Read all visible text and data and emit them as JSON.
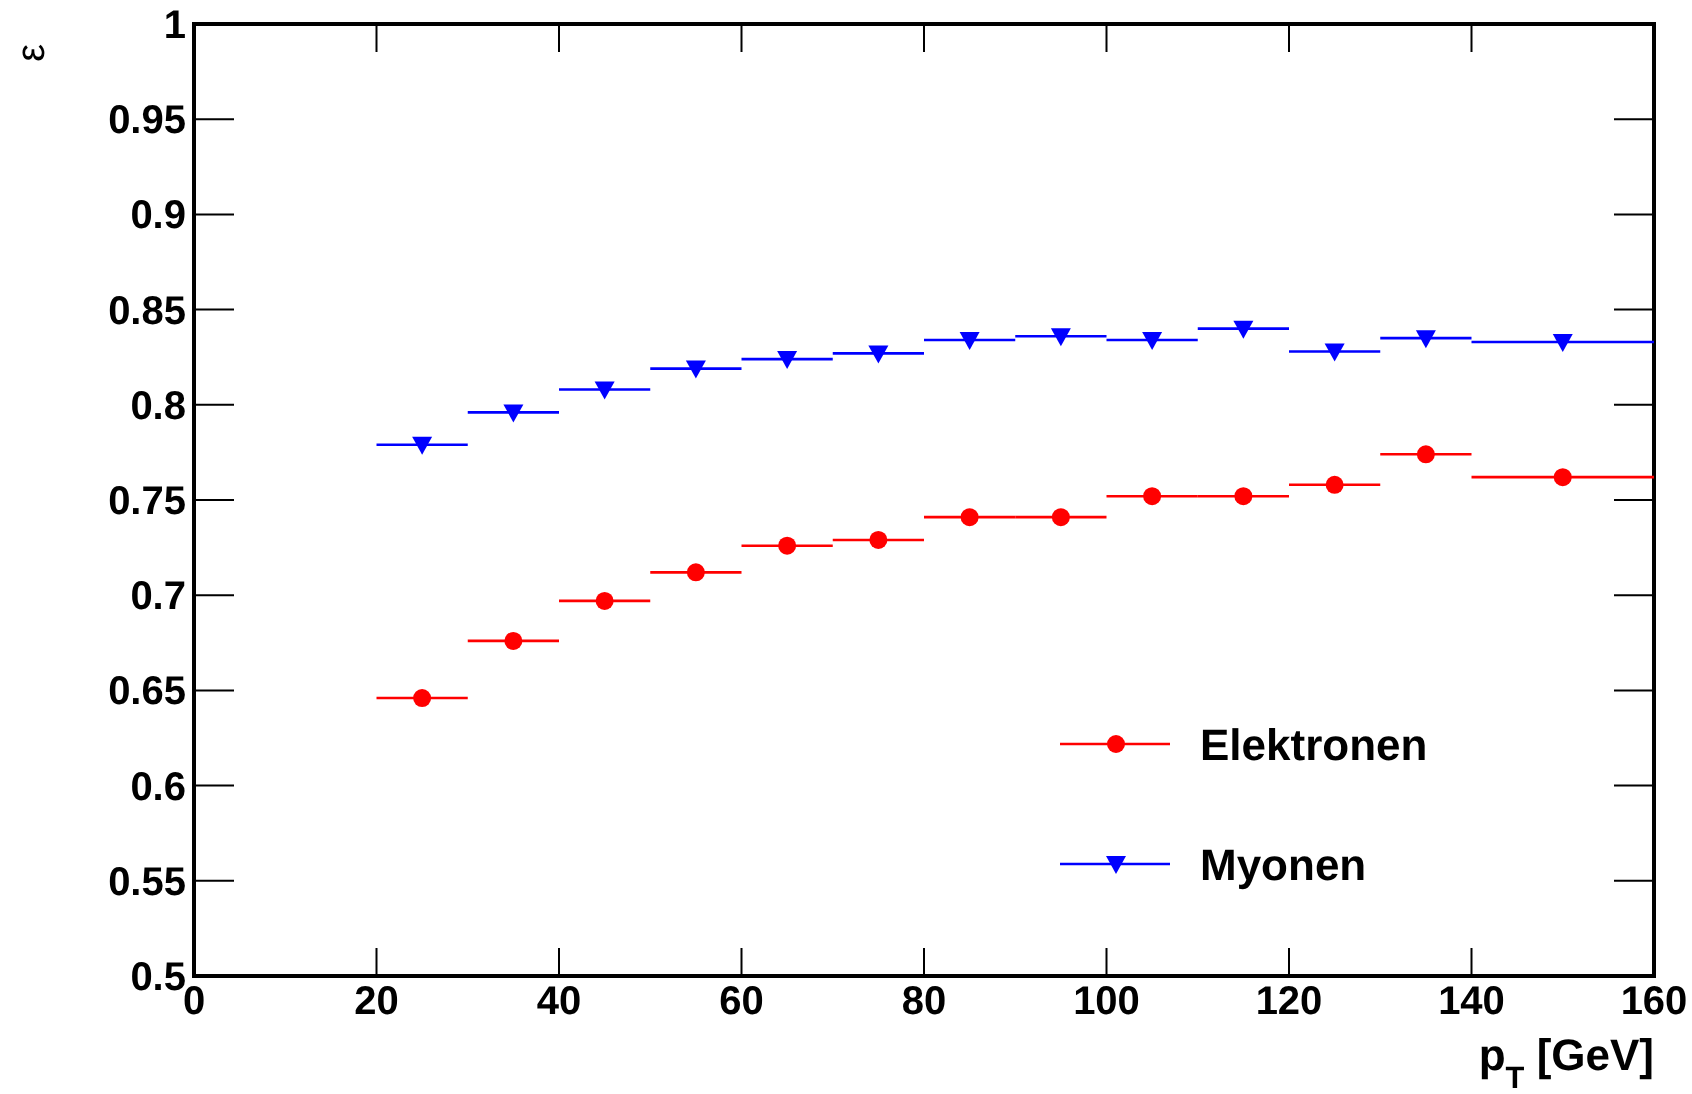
{
  "chart_data": {
    "type": "scatter",
    "xlabel": "p$_{T}$ [GeV]",
    "ylabel": "ε",
    "x": [
      25,
      35,
      45,
      55,
      65,
      75,
      85,
      95,
      105,
      115,
      125,
      135,
      150
    ],
    "series": [
      {
        "name": "Elektronen",
        "color": "#ff0000",
        "marker": "circle",
        "values": [
          0.646,
          0.676,
          0.697,
          0.712,
          0.726,
          0.729,
          0.741,
          0.741,
          0.752,
          0.752,
          0.758,
          0.774,
          0.762
        ],
        "xerrors": [
          5,
          5,
          5,
          5,
          5,
          5,
          5,
          5,
          5,
          5,
          5,
          5,
          10
        ]
      },
      {
        "name": "Myonen",
        "color": "#0000ff",
        "marker": "triangle",
        "values": [
          0.779,
          0.796,
          0.808,
          0.819,
          0.824,
          0.827,
          0.834,
          0.836,
          0.834,
          0.84,
          0.828,
          0.835,
          0.833
        ],
        "xerrors": [
          5,
          5,
          5,
          5,
          5,
          5,
          5,
          5,
          5,
          5,
          5,
          5,
          10
        ]
      }
    ],
    "xlim": [
      0,
      160
    ],
    "xticks": [
      0,
      20,
      40,
      60,
      80,
      100,
      120,
      140,
      160
    ],
    "ylim": [
      0.5,
      1
    ],
    "yticks": [
      0.5,
      0.55,
      0.6,
      0.65,
      0.7,
      0.75,
      0.8,
      0.85,
      0.9,
      0.95,
      1
    ],
    "legend": "bottom right",
    "grid": false
  }
}
